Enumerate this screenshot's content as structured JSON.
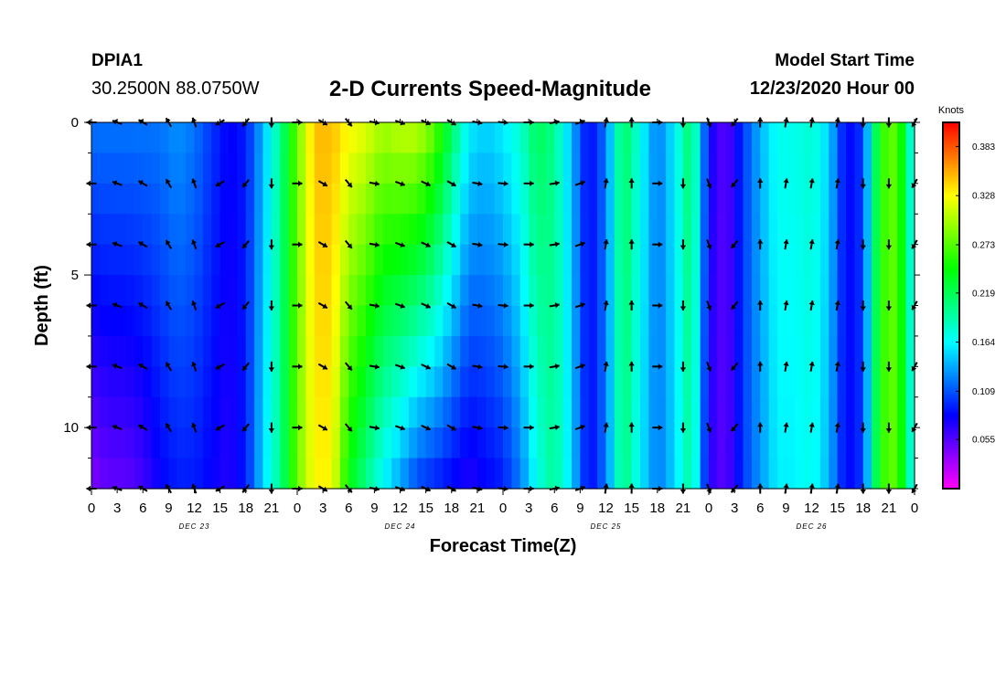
{
  "header": {
    "station": "DPIA1",
    "coordinates": "30.2500N 88.0750W",
    "title": "2-D Currents Speed-Magnitude",
    "model_start_label": "Model Start Time",
    "model_start_value": "12/23/2020 Hour 00"
  },
  "chart_data": {
    "type": "heatmap",
    "title": "2-D Currents Speed-Magnitude",
    "xlabel": "Forecast Time(Z)",
    "ylabel": "Depth (ft)",
    "x_range_hours": [
      0,
      96
    ],
    "y_range_ft": [
      0,
      12
    ],
    "y_ticks": [
      0,
      5,
      10
    ],
    "x_tick_labels": [
      "0",
      "3",
      "6",
      "9",
      "12",
      "15",
      "18",
      "21",
      "0",
      "3",
      "6",
      "9",
      "12",
      "15",
      "18",
      "21",
      "0",
      "3",
      "6",
      "9",
      "12",
      "15",
      "18",
      "21",
      "0",
      "3",
      "6",
      "9",
      "12",
      "15",
      "18",
      "21",
      "0"
    ],
    "day_labels": [
      {
        "text": "DEC 23",
        "hour": 12
      },
      {
        "text": "DEC 24",
        "hour": 36
      },
      {
        "text": "DEC 25",
        "hour": 60
      },
      {
        "text": "DEC 26",
        "hour": 84
      }
    ],
    "colorbar": {
      "unit": "Knots",
      "range": [
        0.0,
        0.41
      ],
      "tick_values": [
        0.383,
        0.328,
        0.273,
        0.219,
        0.164,
        0.109,
        0.055
      ],
      "tick_labels": [
        "0.383",
        "0.328",
        "0.273",
        "0.219",
        "0.164",
        "0.109",
        "0.055"
      ]
    },
    "speed_profile": {
      "hours": [
        0,
        2,
        4,
        6,
        8,
        10,
        12,
        14,
        16,
        18,
        20,
        22,
        24,
        26,
        28,
        30,
        32,
        34,
        36,
        38,
        40,
        42,
        44,
        46,
        48,
        50,
        52,
        54,
        56,
        58,
        60,
        62,
        64,
        66,
        68,
        70,
        72,
        74,
        76,
        78,
        80,
        82,
        84,
        86,
        88,
        90,
        92,
        94,
        96
      ],
      "speed_surface": [
        0.12,
        0.12,
        0.12,
        0.12,
        0.12,
        0.13,
        0.12,
        0.1,
        0.08,
        0.09,
        0.14,
        0.2,
        0.28,
        0.35,
        0.35,
        0.33,
        0.32,
        0.3,
        0.31,
        0.31,
        0.28,
        0.22,
        0.16,
        0.15,
        0.16,
        0.18,
        0.22,
        0.2,
        0.14,
        0.08,
        0.12,
        0.22,
        0.17,
        0.12,
        0.16,
        0.22,
        0.08,
        0.05,
        0.1,
        0.14,
        0.17,
        0.17,
        0.18,
        0.15,
        0.08,
        0.1,
        0.26,
        0.28,
        0.15
      ],
      "speed_bottom": [
        0.04,
        0.05,
        0.05,
        0.06,
        0.08,
        0.09,
        0.09,
        0.08,
        0.07,
        0.09,
        0.15,
        0.2,
        0.28,
        0.33,
        0.33,
        0.24,
        0.2,
        0.16,
        0.13,
        0.1,
        0.09,
        0.08,
        0.07,
        0.08,
        0.09,
        0.12,
        0.17,
        0.2,
        0.15,
        0.08,
        0.12,
        0.21,
        0.16,
        0.12,
        0.15,
        0.2,
        0.07,
        0.05,
        0.1,
        0.13,
        0.16,
        0.16,
        0.17,
        0.14,
        0.08,
        0.1,
        0.26,
        0.28,
        0.15
      ]
    },
    "vectors": {
      "hours": [
        0,
        3,
        6,
        9,
        12,
        15,
        18,
        21,
        24,
        27,
        30,
        33,
        36,
        39,
        42,
        45,
        48,
        51,
        54,
        57,
        60,
        63,
        66,
        69,
        72,
        75,
        78,
        81,
        84,
        87,
        90,
        93,
        96
      ],
      "depths_ft": [
        0,
        2,
        4,
        6,
        8,
        10,
        12
      ],
      "direction_deg_by_hour": [
        270,
        290,
        300,
        330,
        340,
        240,
        220,
        180,
        90,
        120,
        140,
        100,
        110,
        115,
        120,
        100,
        95,
        90,
        80,
        70,
        10,
        0,
        90,
        180,
        160,
        220,
        0,
        10,
        10,
        10,
        180,
        180,
        210
      ]
    }
  }
}
